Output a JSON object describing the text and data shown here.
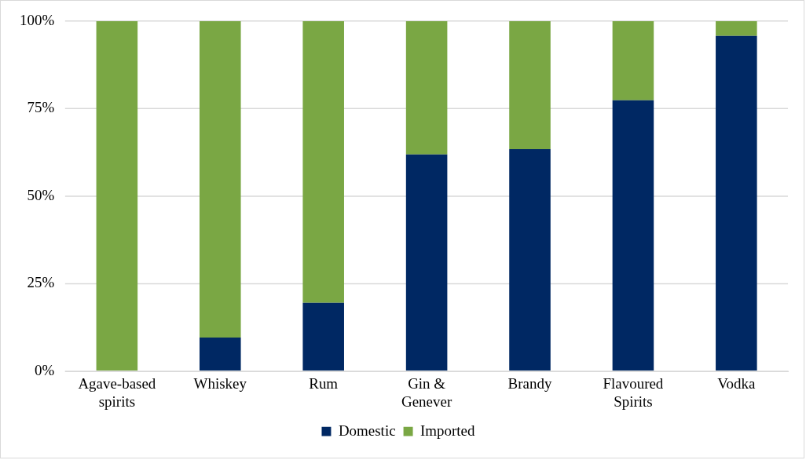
{
  "chart_data": {
    "type": "bar",
    "stacked": true,
    "categories": [
      "Agave-based spirits",
      "Whiskey",
      "Rum",
      "Gin & Genever",
      "Brandy",
      "Flavoured Spirits",
      "Vodka"
    ],
    "series": [
      {
        "name": "Domestic",
        "color": "#002863",
        "values": [
          0,
          9.6,
          19.5,
          61.9,
          63.4,
          77.4,
          95.8
        ]
      },
      {
        "name": "Imported",
        "color": "#7aa744",
        "values": [
          100,
          90.4,
          80.5,
          38.1,
          36.6,
          22.6,
          4.2
        ]
      }
    ],
    "ylim": [
      0,
      100
    ],
    "yticks": [
      {
        "value": 0,
        "label": "0%"
      },
      {
        "value": 25,
        "label": "25%"
      },
      {
        "value": 50,
        "label": "50%"
      },
      {
        "value": 75,
        "label": "75%"
      },
      {
        "value": 100,
        "label": "100%"
      }
    ],
    "grid": "y",
    "legend": "bottom"
  }
}
